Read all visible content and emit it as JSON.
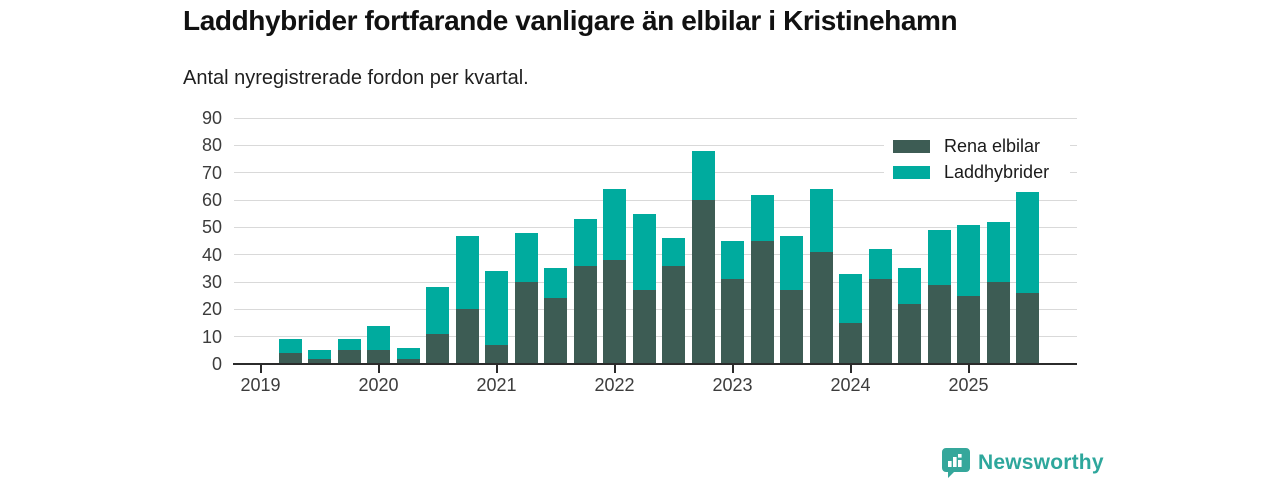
{
  "header": {
    "title": "Laddhybrider fortfarande vanligare än elbilar i Kristinehamn",
    "subtitle": "Antal nyregistrerade fordon per kvartal."
  },
  "chart_data": {
    "type": "bar",
    "stacked": true,
    "title": "Laddhybrider fortfarande vanligare än elbilar i Kristinehamn",
    "subtitle": "Antal nyregistrerade fordon per kvartal.",
    "categories": [
      "2019 Q2",
      "2019 Q3",
      "2019 Q4",
      "2020 Q1",
      "2020 Q2",
      "2020 Q3",
      "2020 Q4",
      "2021 Q1",
      "2021 Q2",
      "2021 Q3",
      "2021 Q4",
      "2022 Q1",
      "2022 Q2",
      "2022 Q3",
      "2022 Q4",
      "2023 Q1",
      "2023 Q2",
      "2023 Q3",
      "2023 Q4",
      "2024 Q1",
      "2024 Q2",
      "2024 Q3",
      "2024 Q4",
      "2025 Q1",
      "2025 Q2",
      "2025 Q3"
    ],
    "series": [
      {
        "name": "Rena elbilar",
        "color": "#3d5c54",
        "values": [
          4,
          2,
          5,
          5,
          2,
          11,
          20,
          7,
          30,
          24,
          36,
          38,
          27,
          36,
          60,
          31,
          45,
          27,
          41,
          15,
          31,
          22,
          29,
          25,
          30,
          26
        ]
      },
      {
        "name": "Laddhybrider",
        "color": "#00ab9e",
        "values": [
          5,
          3,
          4,
          9,
          4,
          17,
          27,
          27,
          18,
          11,
          17,
          26,
          28,
          10,
          18,
          14,
          17,
          20,
          23,
          18,
          11,
          13,
          20,
          26,
          22,
          37
        ]
      }
    ],
    "x_tick_labels": [
      "2019",
      "2020",
      "2021",
      "2022",
      "2023",
      "2024",
      "2025"
    ],
    "y_ticks": [
      0,
      10,
      20,
      30,
      40,
      50,
      60,
      70,
      80,
      90
    ],
    "ylim": [
      0,
      90
    ],
    "grid": true,
    "legend_position": "top-right",
    "leading_empty_slots": 1
  },
  "legend": {
    "item1": "Rena elbilar",
    "item2": "Laddhybrider"
  },
  "branding": {
    "logo_text": "Newsworthy",
    "logo_color": "#2ea79c"
  },
  "colors": {
    "elbilar": "#3d5c54",
    "laddhybrider": "#00ab9e",
    "gridline": "#d9d9d9",
    "axis": "#2b2b2b"
  }
}
